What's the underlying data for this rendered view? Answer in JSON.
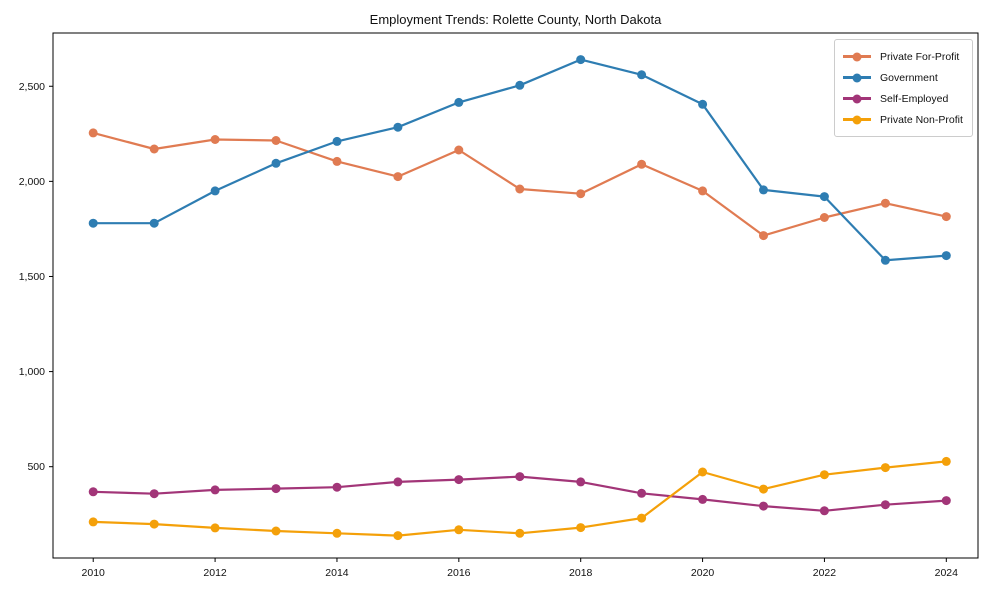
{
  "chart_data": {
    "type": "line",
    "title": "Employment Trends: Rolette County, North Dakota",
    "xlabel": "",
    "ylabel": "",
    "grid": false,
    "legend_position": "upper right",
    "marker": "circle",
    "xlim": [
      2009.34,
      2024.52
    ],
    "ylim": [
      20,
      2780
    ],
    "x": [
      2010,
      2011,
      2012,
      2013,
      2014,
      2015,
      2016,
      2017,
      2018,
      2019,
      2020,
      2021,
      2022,
      2023,
      2024
    ],
    "series": [
      {
        "name": "Private For-Profit",
        "color": "#E07B52",
        "values": [
          2255,
          2170,
          2220,
          2215,
          2105,
          2025,
          2165,
          1960,
          1935,
          2090,
          1950,
          1715,
          1810,
          1885,
          1815
        ]
      },
      {
        "name": "Government",
        "color": "#2E7DB2",
        "values": [
          1780,
          1780,
          1950,
          2095,
          2210,
          2285,
          2415,
          2505,
          2640,
          2560,
          2405,
          1955,
          1920,
          1585,
          1610
        ]
      },
      {
        "name": "Self-Employed",
        "color": "#A23578",
        "values": [
          368,
          358,
          378,
          385,
          392,
          420,
          432,
          448,
          420,
          360,
          328,
          293,
          268,
          300,
          322
        ]
      },
      {
        "name": "Private Non-Profit",
        "color": "#F4A009",
        "values": [
          210,
          198,
          178,
          162,
          150,
          138,
          168,
          150,
          180,
          230,
          472,
          382,
          458,
          495,
          528
        ]
      }
    ],
    "x_ticks": [
      {
        "value": 2010,
        "label": "2010"
      },
      {
        "value": 2012,
        "label": "2012"
      },
      {
        "value": 2014,
        "label": "2014"
      },
      {
        "value": 2016,
        "label": "2016"
      },
      {
        "value": 2018,
        "label": "2018"
      },
      {
        "value": 2020,
        "label": "2020"
      },
      {
        "value": 2022,
        "label": "2022"
      },
      {
        "value": 2024,
        "label": "2024"
      }
    ],
    "y_ticks": [
      {
        "value": 500,
        "label": "500"
      },
      {
        "value": 1000,
        "label": "1,000"
      },
      {
        "value": 1500,
        "label": "1,500"
      },
      {
        "value": 2000,
        "label": "2,000"
      },
      {
        "value": 2500,
        "label": "2,500"
      }
    ]
  }
}
